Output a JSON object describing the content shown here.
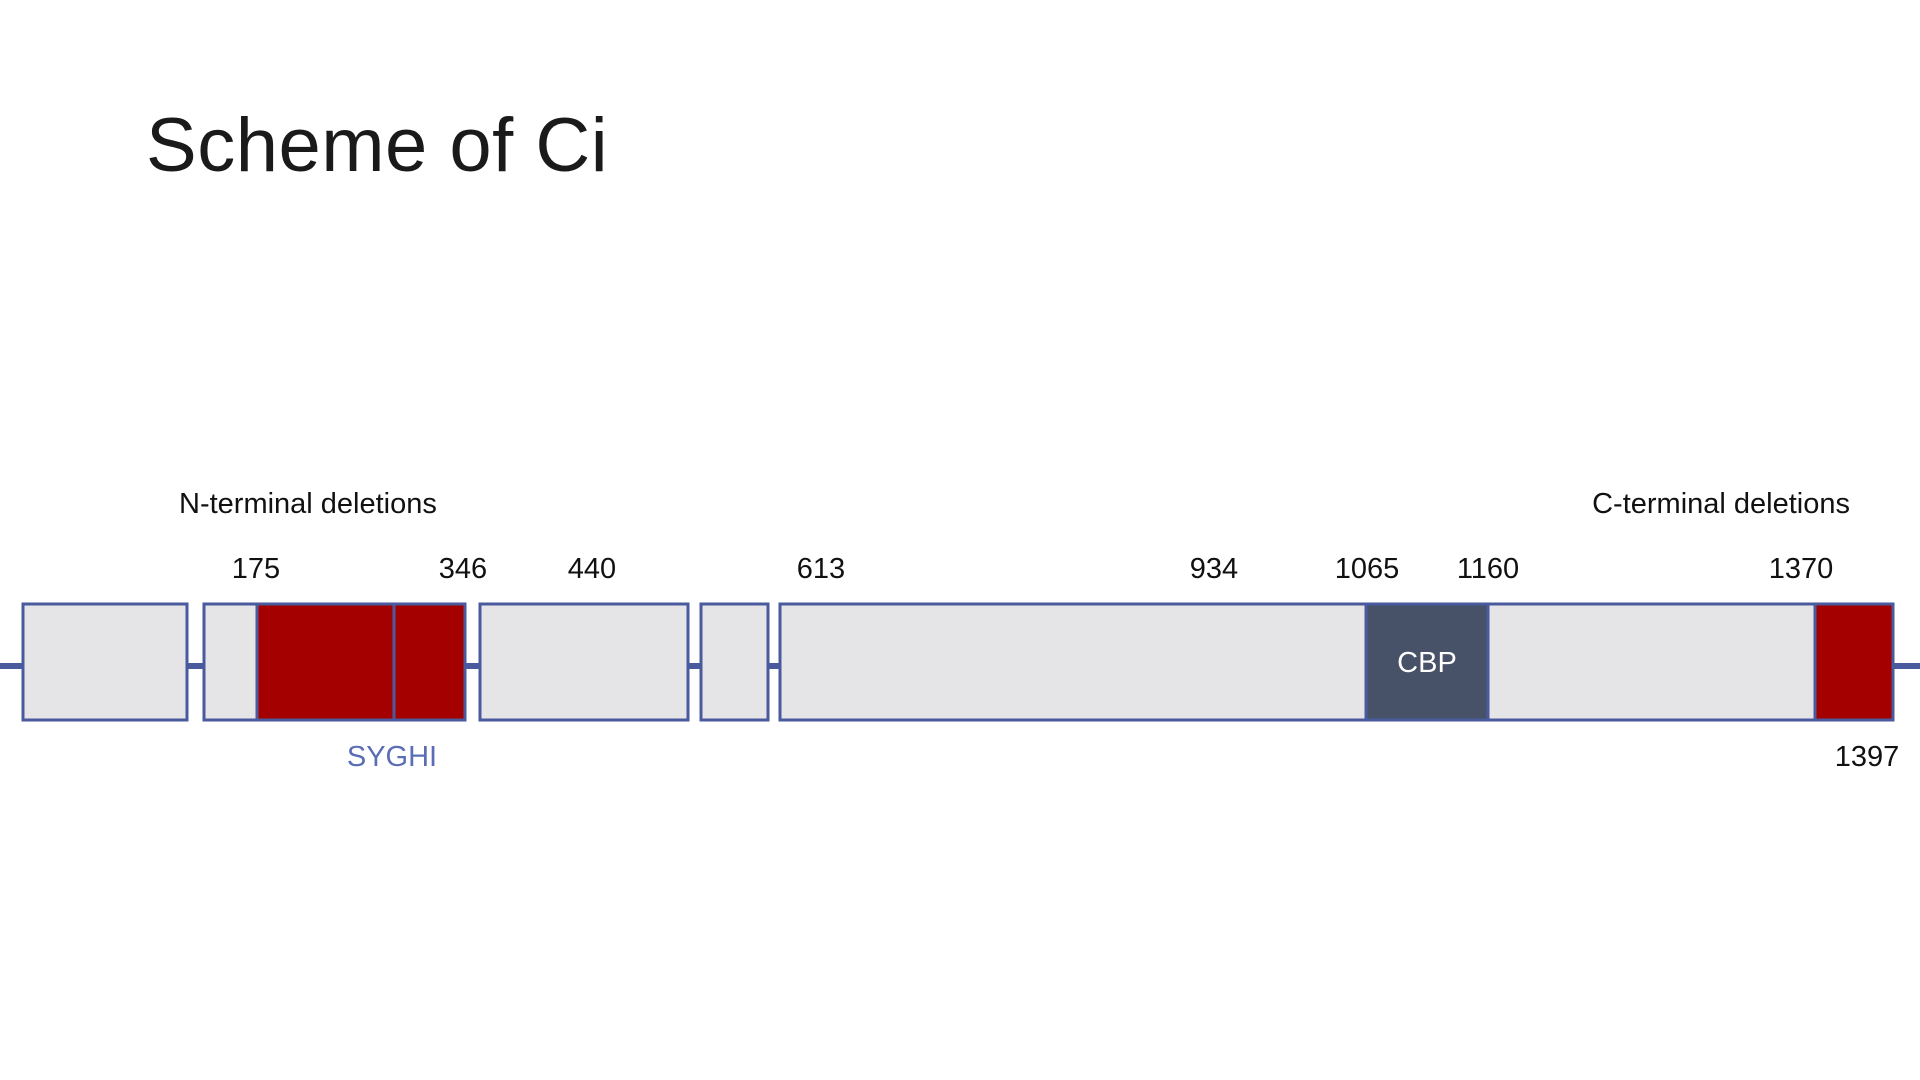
{
  "title": "Scheme of Ci",
  "labels": {
    "n_terminal": "N-terminal deletions",
    "c_terminal": "C-terminal deletions",
    "motif": "SYGHI",
    "domain": "CBP"
  },
  "positions": {
    "p175": "175",
    "p346": "346",
    "p440": "440",
    "p613": "613",
    "p934": "934",
    "p1065": "1065",
    "p1160": "1160",
    "p1370": "1370",
    "p1397": "1397"
  },
  "colors": {
    "backbone": "#4a5a9e",
    "block_fill": "#e5e4e6",
    "block_stroke": "#4a5a9e",
    "deletion": "#a50000",
    "cbp_domain": "#475167",
    "motif_text": "#5b6db5"
  }
}
